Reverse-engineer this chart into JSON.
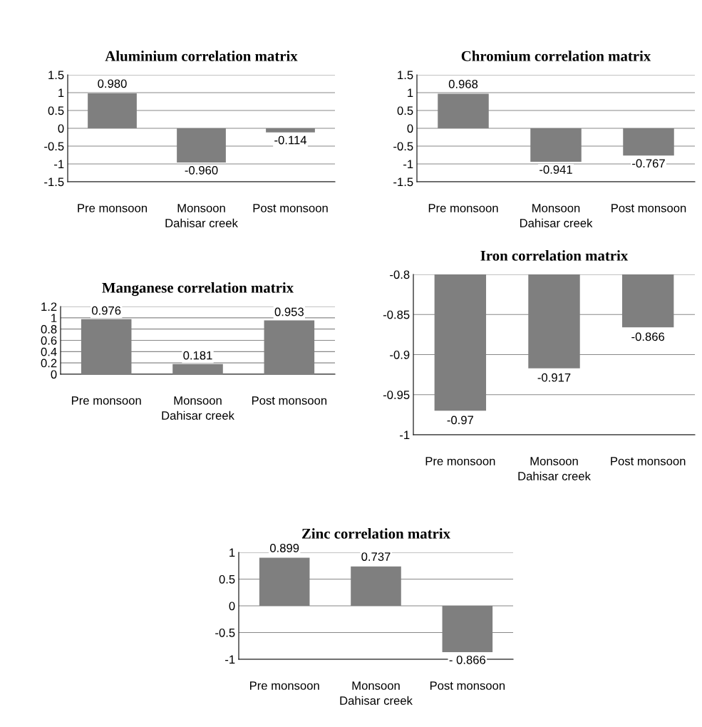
{
  "chart_data": [
    {
      "type": "bar",
      "title": "Aluminium correlation matrix",
      "xlabel": "Dahisar creek",
      "categories": [
        "Pre monsoon",
        "Monsoon",
        "Post monsoon"
      ],
      "values": [
        0.98,
        -0.96,
        -0.114
      ],
      "value_labels": [
        "0.980",
        "-0.960",
        "-0.114"
      ],
      "color": "#7f7f7f",
      "ylim": [
        -1.5,
        1.5
      ],
      "yticks": [
        1.5,
        1,
        0.5,
        0,
        -0.5,
        -1,
        -1.5
      ],
      "grid": "y"
    },
    {
      "type": "bar",
      "title": "Chromium correlation matrix",
      "xlabel": "Dahisar creek",
      "categories": [
        "Pre monsoon",
        "Monsoon",
        "Post monsoon"
      ],
      "values": [
        0.968,
        -0.941,
        -0.767
      ],
      "value_labels": [
        "0.968",
        "-0.941",
        "-0.767"
      ],
      "color": "#7f7f7f",
      "ylim": [
        -1.5,
        1.5
      ],
      "yticks": [
        1.5,
        1,
        0.5,
        0,
        -0.5,
        -1,
        -1.5
      ],
      "grid": "y"
    },
    {
      "type": "bar",
      "title": "Manganese correlation matrix",
      "xlabel": "Dahisar creek",
      "categories": [
        "Pre monsoon",
        "Monsoon",
        "Post monsoon"
      ],
      "values": [
        0.976,
        0.181,
        0.953
      ],
      "value_labels": [
        "0.976",
        "0.181",
        "0.953"
      ],
      "color": "#7f7f7f",
      "ylim": [
        0,
        1.2
      ],
      "yticks": [
        1.2,
        1,
        0.8,
        0.6,
        0.4,
        0.2,
        0
      ],
      "grid": "y"
    },
    {
      "type": "bar",
      "title": "Iron correlation matrix",
      "xlabel": "Dahisar creek",
      "categories": [
        "Pre monsoon",
        "Monsoon",
        "Post monsoon"
      ],
      "values": [
        -0.97,
        -0.917,
        -0.866
      ],
      "value_labels": [
        "-0.97",
        "-0.917",
        "-0.866"
      ],
      "color": "#7f7f7f",
      "ylim": [
        -1,
        -0.8
      ],
      "yticks": [
        -0.8,
        -0.85,
        -0.9,
        -0.95,
        -1
      ],
      "grid": "y"
    },
    {
      "type": "bar",
      "title": "Zinc correlation matrix",
      "xlabel": "Dahisar creek",
      "categories": [
        "Pre monsoon",
        "Monsoon",
        "Post monsoon"
      ],
      "values": [
        0.899,
        0.737,
        -0.866
      ],
      "value_labels": [
        "0.899",
        "0.737",
        "- 0.866"
      ],
      "color": "#7f7f7f",
      "ylim": [
        -1,
        1
      ],
      "yticks": [
        1,
        0.5,
        0,
        -0.5,
        -1
      ],
      "grid": "y"
    }
  ]
}
